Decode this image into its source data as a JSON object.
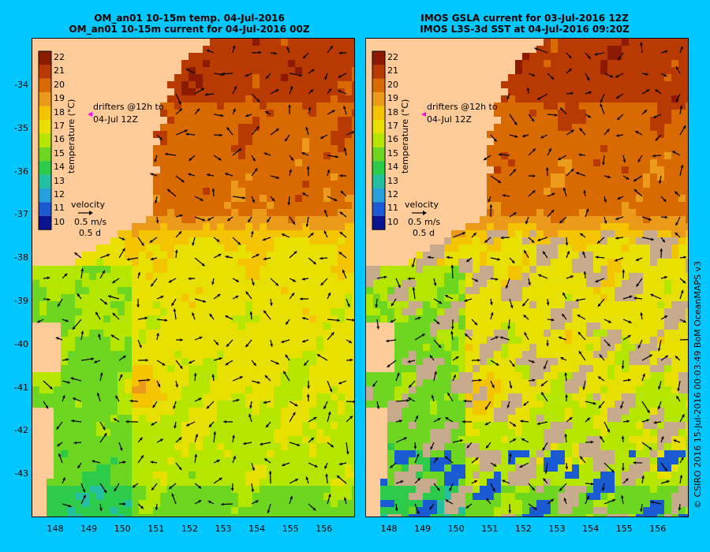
{
  "left_panel": {
    "title_line1": "OM_an01 10-15m temp. 04-Jul-2016",
    "title_line2": "OM_an01 10-15m current for 04-Jul-2016 00Z"
  },
  "right_panel": {
    "title_line1": "IMOS GSLA current for 03-Jul-2016 12Z",
    "title_line2": "IMOS L3S-3d SST at 04-Jul-2016 09:20Z"
  },
  "latitude_labels": [
    "-34",
    "-35",
    "-36",
    "-37",
    "-38",
    "-39",
    "-40",
    "-41",
    "-42",
    "-43"
  ],
  "longitude_labels": [
    "148",
    "149",
    "150",
    "151",
    "152",
    "153",
    "154",
    "155",
    "156"
  ],
  "colorbar": {
    "labels": [
      "22",
      "21",
      "20",
      "19",
      "18",
      "17",
      "16",
      "15",
      "14",
      "13",
      "12",
      "11",
      "10"
    ],
    "axis_label": "temperature (°C)",
    "colors": [
      "#8b1a00",
      "#b83a00",
      "#d96a00",
      "#eb9a1a",
      "#f5c400",
      "#e8e000",
      "#b4e600",
      "#6cd620",
      "#2ccc4a",
      "#22c0a0",
      "#28a0dc",
      "#1a5ad2",
      "#0a1490"
    ]
  },
  "legend": {
    "drifters_line1": "drifters @12h to",
    "drifters_line2": "04-Jul 12Z",
    "velocity_title": "velocity",
    "velocity_value": "0.5 m/s",
    "velocity_time": "0.5 d"
  },
  "colors": {
    "ocean_bg": "#00c8ff",
    "land": "#ffcc99",
    "cloud": "#c8aa8c",
    "drifter_marker": "#ff00ff"
  },
  "credit": "© CSIRO 2016   15-Jul-2016 00:03:49 BoM OceanMAPS v3"
}
